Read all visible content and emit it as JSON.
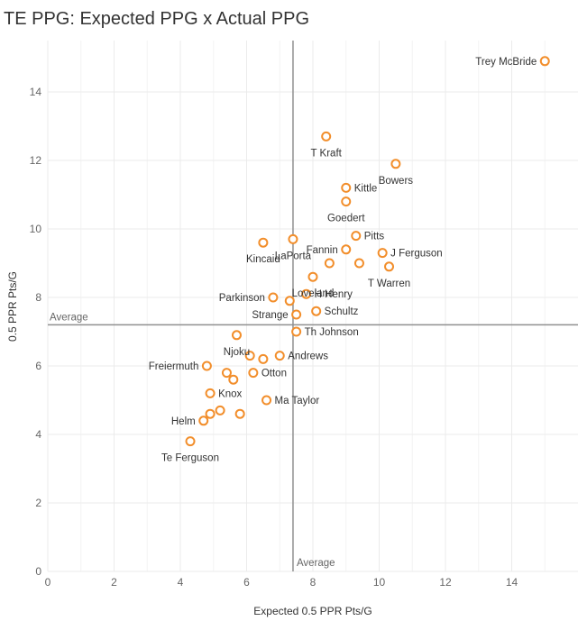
{
  "chart_data": {
    "type": "scatter",
    "title": "TE PPG: Expected PPG x Actual PPG",
    "xlabel": "Expected 0.5 PPR Pts/G",
    "ylabel": "0.5 PPR Pts/G",
    "xlim": [
      0,
      16
    ],
    "ylim": [
      0,
      15.5
    ],
    "x_ticks": [
      "0",
      "2",
      "4",
      "6",
      "8",
      "10",
      "12",
      "14"
    ],
    "y_ticks": [
      "0",
      "2",
      "4",
      "6",
      "8",
      "10",
      "12",
      "14"
    ],
    "grid": true,
    "average": {
      "x": 7.4,
      "y": 7.2,
      "x_label": "Average",
      "y_label": "Average"
    },
    "marker_color": "#f28e2b",
    "points": [
      {
        "label": "Trey McBride",
        "x": 15.0,
        "y": 14.9
      },
      {
        "label": "T Kraft",
        "x": 8.4,
        "y": 12.7
      },
      {
        "label": "Bowers",
        "x": 10.5,
        "y": 11.9
      },
      {
        "label": "Kittle",
        "x": 9.0,
        "y": 11.2
      },
      {
        "label": "Goedert",
        "x": 9.0,
        "y": 10.8
      },
      {
        "label": "Pitts",
        "x": 9.3,
        "y": 9.8
      },
      {
        "label": "Kincaid",
        "x": 6.5,
        "y": 9.6
      },
      {
        "label": "LaPorta",
        "x": 7.4,
        "y": 9.7
      },
      {
        "label": "Fannin",
        "x": 9.0,
        "y": 9.4
      },
      {
        "label": "J Ferguson",
        "x": 10.1,
        "y": 9.3
      },
      {
        "label": "",
        "x": 8.5,
        "y": 9.0
      },
      {
        "label": "",
        "x": 9.4,
        "y": 9.0
      },
      {
        "label": "T Warren",
        "x": 10.3,
        "y": 8.9
      },
      {
        "label": "Loveland",
        "x": 8.0,
        "y": 8.6
      },
      {
        "label": "H Henry",
        "x": 7.8,
        "y": 8.1
      },
      {
        "label": "Parkinson",
        "x": 6.8,
        "y": 8.0
      },
      {
        "label": "",
        "x": 7.3,
        "y": 7.9
      },
      {
        "label": "Schultz",
        "x": 8.1,
        "y": 7.6
      },
      {
        "label": "Strange",
        "x": 7.5,
        "y": 7.5
      },
      {
        "label": "Th Johnson",
        "x": 7.5,
        "y": 7.0
      },
      {
        "label": "Njoku",
        "x": 5.7,
        "y": 6.9
      },
      {
        "label": "Andrews",
        "x": 7.0,
        "y": 6.3
      },
      {
        "label": "",
        "x": 6.1,
        "y": 6.3
      },
      {
        "label": "",
        "x": 6.5,
        "y": 6.2
      },
      {
        "label": "Freiermuth",
        "x": 4.8,
        "y": 6.0
      },
      {
        "label": "Otton",
        "x": 6.2,
        "y": 5.8
      },
      {
        "label": "",
        "x": 5.4,
        "y": 5.8
      },
      {
        "label": "",
        "x": 5.6,
        "y": 5.6
      },
      {
        "label": "Knox",
        "x": 4.9,
        "y": 5.2
      },
      {
        "label": "Ma Taylor",
        "x": 6.6,
        "y": 5.0
      },
      {
        "label": "",
        "x": 5.2,
        "y": 4.7
      },
      {
        "label": "",
        "x": 4.9,
        "y": 4.6
      },
      {
        "label": "",
        "x": 5.8,
        "y": 4.6
      },
      {
        "label": "Helm",
        "x": 4.7,
        "y": 4.4
      },
      {
        "label": "Te Ferguson",
        "x": 4.3,
        "y": 3.8
      }
    ],
    "label_pos": [
      "left",
      "below",
      "below",
      "right",
      "below",
      "right",
      "below",
      "below",
      "left",
      "right",
      "",
      "",
      "below",
      "below",
      "right",
      "left",
      "",
      "right",
      "left",
      "right",
      "below",
      "right",
      "",
      "",
      "left",
      "right",
      "",
      "",
      "right",
      "right",
      "",
      "",
      "below-left",
      "left",
      "below"
    ]
  }
}
